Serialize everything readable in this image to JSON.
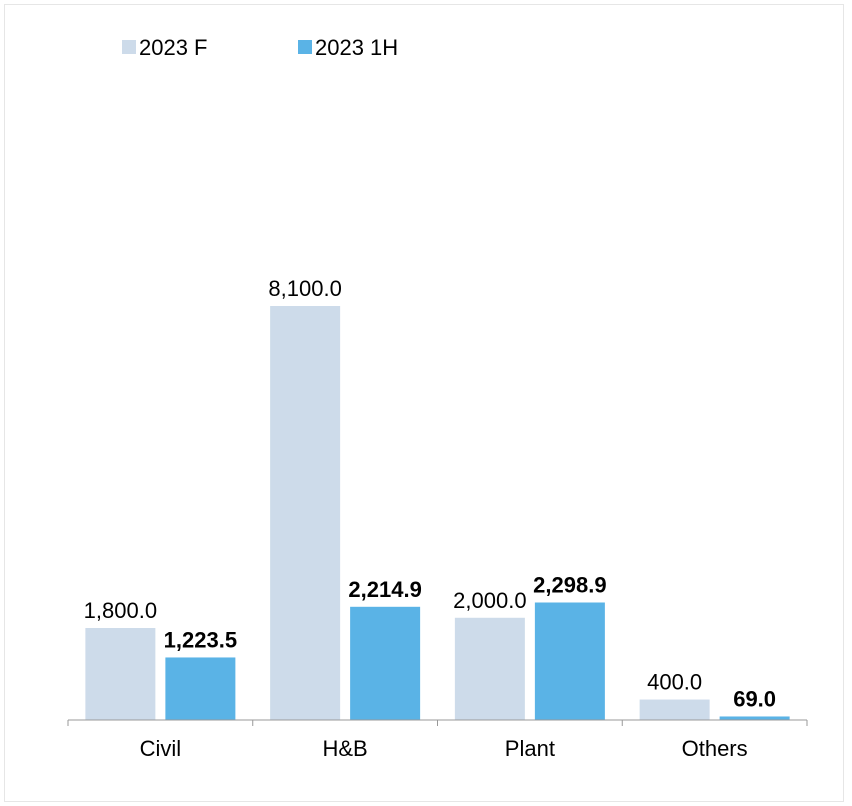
{
  "chart_data": {
    "type": "bar",
    "categories": [
      "Civil",
      "H&B",
      "Plant",
      "Others"
    ],
    "series": [
      {
        "name": "2023 F",
        "color": "#cddbea",
        "values": [
          1800.0,
          8100.0,
          2000.0,
          400.0
        ],
        "labels": [
          "1,800.0",
          "8,100.0",
          "2,000.0",
          "400.0"
        ],
        "bold_labels": false
      },
      {
        "name": "2023 1H",
        "color": "#5ab3e6",
        "values": [
          1223.5,
          2214.9,
          2298.9,
          69.0
        ],
        "labels": [
          "1,223.5",
          "2,214.9",
          "2,298.9",
          "69.0"
        ],
        "bold_labels": true
      }
    ],
    "title": "",
    "xlabel": "",
    "ylabel": "",
    "ylim": [
      0,
      13500
    ],
    "grid": false,
    "legend_position": "top-left"
  }
}
